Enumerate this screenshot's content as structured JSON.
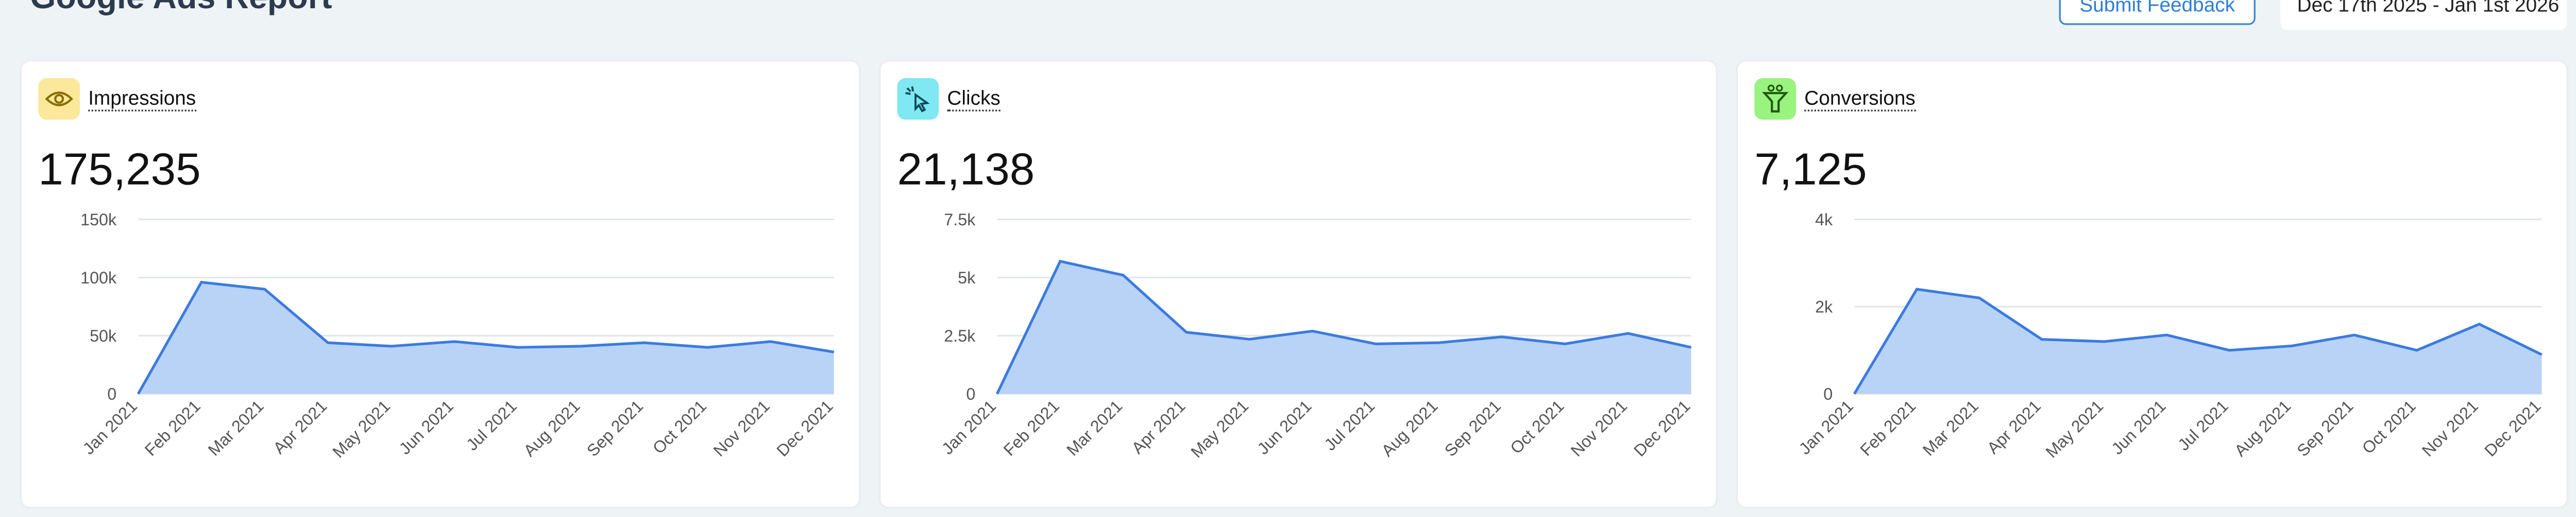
{
  "header": {
    "title": "Google Ads Report",
    "feedback_button": "Submit Feedback",
    "date_range": "Dec 17th 2025 - Jan 1st 2026"
  },
  "chart_data": [
    {
      "type": "area",
      "title": "Impressions",
      "total": "175,235",
      "color": "#3b7be0",
      "categories": [
        "Jan 2021",
        "Feb 2021",
        "Mar 2021",
        "Apr 2021",
        "May 2021",
        "Jun 2021",
        "Jul 2021",
        "Aug 2021",
        "Sep 2021",
        "Oct 2021",
        "Nov 2021",
        "Dec 2021"
      ],
      "values": [
        0,
        96000,
        90000,
        44000,
        41000,
        45000,
        40000,
        41000,
        44000,
        40000,
        45000,
        36000
      ],
      "ylim": [
        0,
        150000
      ],
      "yticks": [
        0,
        {
          "value": 50000,
          "label": "50k"
        },
        {
          "value": 100000,
          "label": "100k"
        },
        {
          "value": 150000,
          "label": "150k"
        }
      ],
      "grid": true
    },
    {
      "type": "area",
      "title": "Clicks",
      "total": "21,138",
      "color": "#3b7be0",
      "categories": [
        "Jan 2021",
        "Feb 2021",
        "Mar 2021",
        "Apr 2021",
        "May 2021",
        "Jun 2021",
        "Jul 2021",
        "Aug 2021",
        "Sep 2021",
        "Oct 2021",
        "Nov 2021",
        "Dec 2021"
      ],
      "values": [
        0,
        5700,
        5100,
        2650,
        2350,
        2700,
        2150,
        2200,
        2450,
        2150,
        2600,
        2000
      ],
      "ylim": [
        0,
        7500
      ],
      "yticks": [
        0,
        {
          "value": 2500,
          "label": "2.5k"
        },
        {
          "value": 5000,
          "label": "5k"
        },
        {
          "value": 7500,
          "label": "7.5k"
        }
      ],
      "grid": true
    },
    {
      "type": "area",
      "title": "Conversions",
      "total": "7,125",
      "color": "#3b7be0",
      "categories": [
        "Jan 2021",
        "Feb 2021",
        "Mar 2021",
        "Apr 2021",
        "May 2021",
        "Jun 2021",
        "Jul 2021",
        "Aug 2021",
        "Sep 2021",
        "Oct 2021",
        "Nov 2021",
        "Dec 2021"
      ],
      "values": [
        0,
        2400,
        2200,
        1250,
        1200,
        1350,
        1000,
        1100,
        1350,
        1000,
        1600,
        900
      ],
      "ylim": [
        0,
        4000
      ],
      "yticks": [
        0,
        {
          "value": 2000,
          "label": "2k"
        },
        {
          "value": 4000,
          "label": "4k"
        }
      ],
      "grid": true
    }
  ]
}
